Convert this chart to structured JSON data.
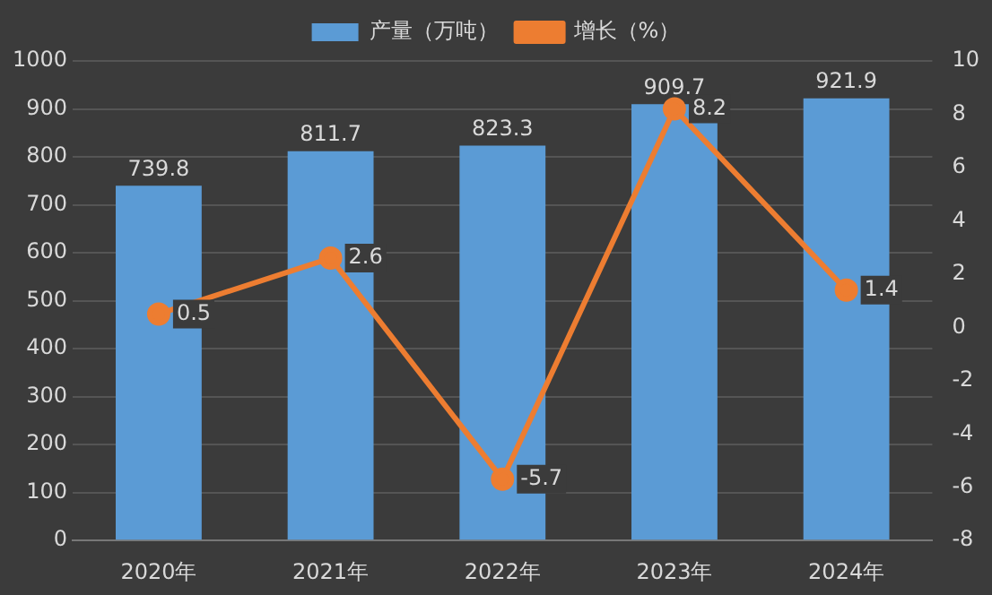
{
  "chart_data": {
    "type": "bar",
    "categories": [
      "2020年",
      "2021年",
      "2022年",
      "2023年",
      "2024年"
    ],
    "series": [
      {
        "name": "产量（万吨）",
        "color": "#5b9bd5",
        "values": [
          739.8,
          811.7,
          823.3,
          909.7,
          921.9
        ]
      },
      {
        "name": "增长（%）",
        "type": "line",
        "axis": "y2",
        "color": "#ed7d31",
        "values": [
          0.5,
          2.6,
          -5.7,
          8.2,
          1.4
        ]
      }
    ],
    "ylim": [
      0,
      1000
    ],
    "yticks": [
      0,
      100,
      200,
      300,
      400,
      500,
      600,
      700,
      800,
      900,
      1000
    ],
    "y2lim": [
      -8,
      10
    ],
    "y2ticks": [
      -8,
      -6,
      -4,
      -2,
      0,
      2,
      4,
      6,
      8,
      10
    ],
    "grid": "y",
    "legend": "top",
    "marker": "circle",
    "data_labels": true
  }
}
